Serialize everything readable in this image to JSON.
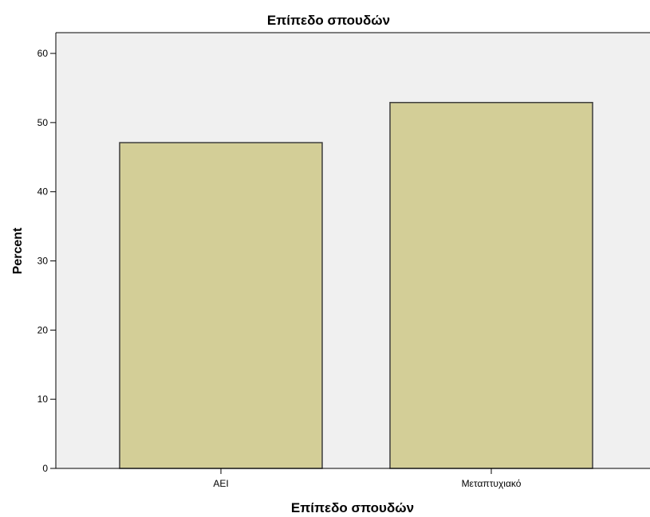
{
  "chart_data": {
    "type": "bar",
    "title": "Επίπεδο σπουδών",
    "xlabel": "Επίπεδο σπουδών",
    "ylabel": "Percent",
    "categories": [
      "ΑΕΙ",
      "Μεταπτυχιακό"
    ],
    "values": [
      47.1,
      52.9
    ],
    "ylim": [
      0,
      63
    ],
    "yticks": [
      0,
      10,
      20,
      30,
      40,
      50,
      60
    ],
    "grid": false,
    "legend": "none",
    "colors": {
      "plot_background": "#f0f0f0",
      "bar_fill": "#d3ce97",
      "bar_stroke": "#3c3c3c",
      "axis": "#000000"
    }
  }
}
